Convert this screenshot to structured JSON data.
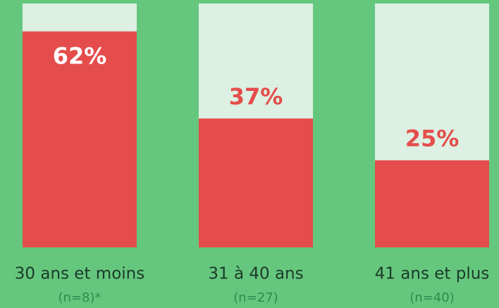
{
  "chart_data": {
    "type": "bar",
    "categories": [
      "30 ans et moins",
      "31 à 40 ans",
      "41 ans et plus"
    ],
    "subcategories": [
      "(n=8)*",
      "(n=27)",
      "(n=40)"
    ],
    "values": [
      62,
      37,
      25
    ],
    "value_labels": [
      "62%",
      "37%",
      "25%"
    ],
    "color": "#e44d4b",
    "background_color": "#dcf0e3",
    "ylim": [
      0,
      70
    ]
  }
}
